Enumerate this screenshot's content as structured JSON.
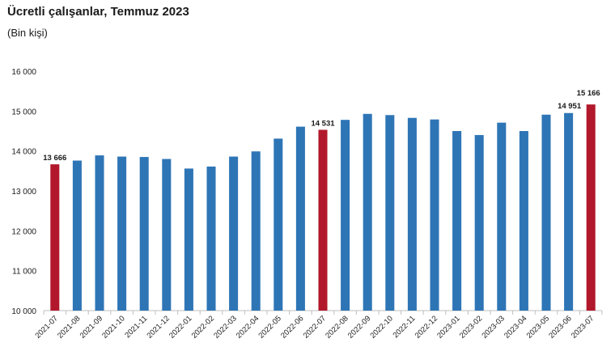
{
  "chart_data": {
    "type": "bar",
    "title": "Ücretli çalışanlar, Temmuz 2023",
    "subtitle": "(Bin kişi)",
    "categories": [
      "2021-07",
      "2021-08",
      "2021-09",
      "2021-10",
      "2021-11",
      "2021-12",
      "2022-01",
      "2022-02",
      "2022-03",
      "2022-04",
      "2022-05",
      "2022-06",
      "2022-07",
      "2022-08",
      "2022-09",
      "2022-10",
      "2022-11",
      "2022-12",
      "2023-01",
      "2023-02",
      "2023-03",
      "2023-04",
      "2023-05",
      "2023-06",
      "2023-07"
    ],
    "values": [
      13666,
      13760,
      13890,
      13860,
      13850,
      13800,
      13560,
      13610,
      13860,
      13990,
      14310,
      14610,
      14531,
      14780,
      14930,
      14900,
      14830,
      14790,
      14500,
      14400,
      14710,
      14500,
      14910,
      14951,
      15166
    ],
    "highlighted_categories": [
      "2021-07",
      "2022-07",
      "2023-07"
    ],
    "data_labels": {
      "2021-07": "13 666",
      "2022-07": "14 531",
      "2023-06": "14 951",
      "2023-07": "15 166"
    },
    "ylim": [
      10000,
      16000
    ],
    "yticks": [
      10000,
      11000,
      12000,
      13000,
      14000,
      15000,
      16000
    ],
    "ytick_labels": [
      "10 000",
      "11 000",
      "12 000",
      "13 000",
      "14 000",
      "15 000",
      "16 000"
    ],
    "xlabel": "",
    "ylabel": "",
    "grid": false,
    "legend": "none",
    "colors": {
      "bar": "#2e75b6",
      "highlight": "#b2182b",
      "axis": "#bfbfbf",
      "text": "#1a1a1a"
    }
  }
}
